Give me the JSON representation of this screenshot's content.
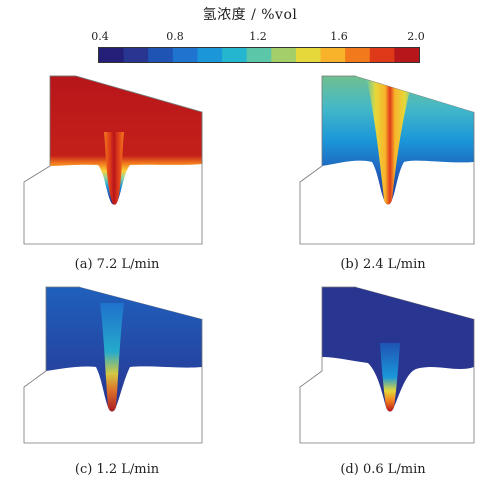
{
  "colorbar": {
    "title": "氢浓度 / %vol",
    "ticks": [
      "0.4",
      "0.8",
      "1.2",
      "1.6",
      "2.0"
    ],
    "colors": [
      "#24207a",
      "#283591",
      "#1f54b5",
      "#1f74cf",
      "#1b97d9",
      "#24b5cf",
      "#5cc6a8",
      "#a3cf6a",
      "#e6d83a",
      "#f9b32a",
      "#f27a1d",
      "#de3a1a",
      "#b7161a"
    ]
  },
  "panels": [
    {
      "caption": "(a) 7.2 L/min"
    },
    {
      "caption": "(b) 2.4 L/min"
    },
    {
      "caption": "(c) 1.2 L/min"
    },
    {
      "caption": "(d) 0.6 L/min"
    }
  ]
}
